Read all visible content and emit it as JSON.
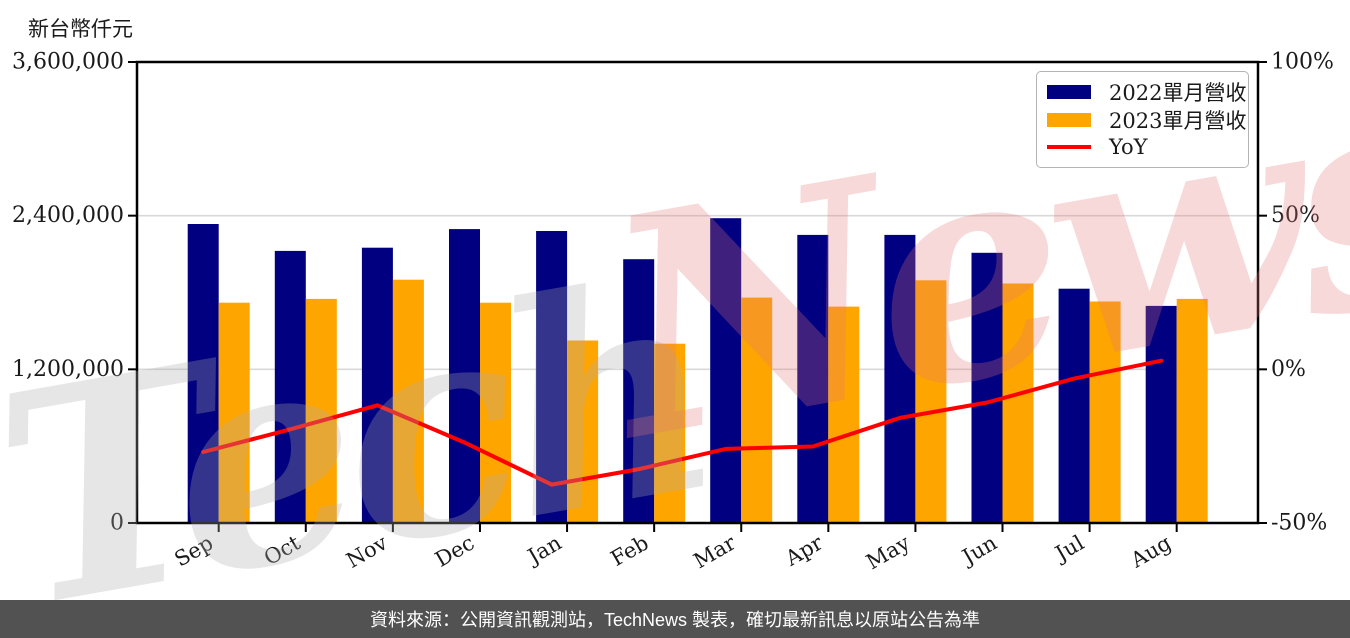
{
  "header": {
    "unit_label": "新台幣仟元"
  },
  "chart_data": {
    "type": "bar",
    "title": "",
    "categories": [
      "Sep",
      "Oct",
      "Nov",
      "Dec",
      "Jan",
      "Feb",
      "Mar",
      "Apr",
      "May",
      "Jun",
      "Jul",
      "Aug"
    ],
    "series": [
      {
        "name": "2022單月營收",
        "type": "bar",
        "axis": "left",
        "color": "#000080",
        "values": [
          2335000,
          2125000,
          2150000,
          2295000,
          2280000,
          2060000,
          2380000,
          2250000,
          2250000,
          2110000,
          1830000,
          1695000
        ]
      },
      {
        "name": "2023單月營收",
        "type": "bar",
        "axis": "left",
        "color": "#FFA500",
        "values": [
          1720000,
          1750000,
          1900000,
          1720000,
          1425000,
          1400000,
          1760000,
          1690000,
          1895000,
          1870000,
          1730000,
          1750000
        ]
      },
      {
        "name": "YoY",
        "type": "line",
        "axis": "right",
        "color": "#FF0000",
        "unit": "%",
        "values": [
          -26.9,
          -19.5,
          -11.7,
          -23.8,
          -37.5,
          -32.5,
          -25.9,
          -25.1,
          -15.8,
          -10.8,
          -3.0,
          2.8
        ]
      }
    ],
    "y_axis_left": {
      "label": "新台幣仟元",
      "min": 0,
      "max": 3600000,
      "ticks": [
        {
          "value": 0,
          "label": "0"
        },
        {
          "value": 1200000,
          "label": "1,200,000"
        },
        {
          "value": 2400000,
          "label": "2,400,000"
        },
        {
          "value": 3600000,
          "label": "3,600,000"
        }
      ]
    },
    "y_axis_right": {
      "min": -50,
      "max": 100,
      "ticks": [
        {
          "value": -50,
          "label": "-50%"
        },
        {
          "value": 0,
          "label": "0%"
        },
        {
          "value": 50,
          "label": "50%"
        },
        {
          "value": 100,
          "label": "100%"
        }
      ]
    },
    "grid": true,
    "legend_position": "top-right",
    "colors": {
      "grid": "#d9d9d9",
      "axis": "#000000",
      "background": "#ffffff"
    }
  },
  "watermark": {
    "part1": "Tech",
    "part2": "News",
    "color1": "rgba(173,173,173,0.30)",
    "color2": "rgba(226,120,120,0.28)"
  },
  "footer": {
    "text": "資料來源：公開資訊觀測站，TechNews 製表，確切最新訊息以原站公告為準",
    "background": "#525252",
    "color": "#ffffff"
  }
}
